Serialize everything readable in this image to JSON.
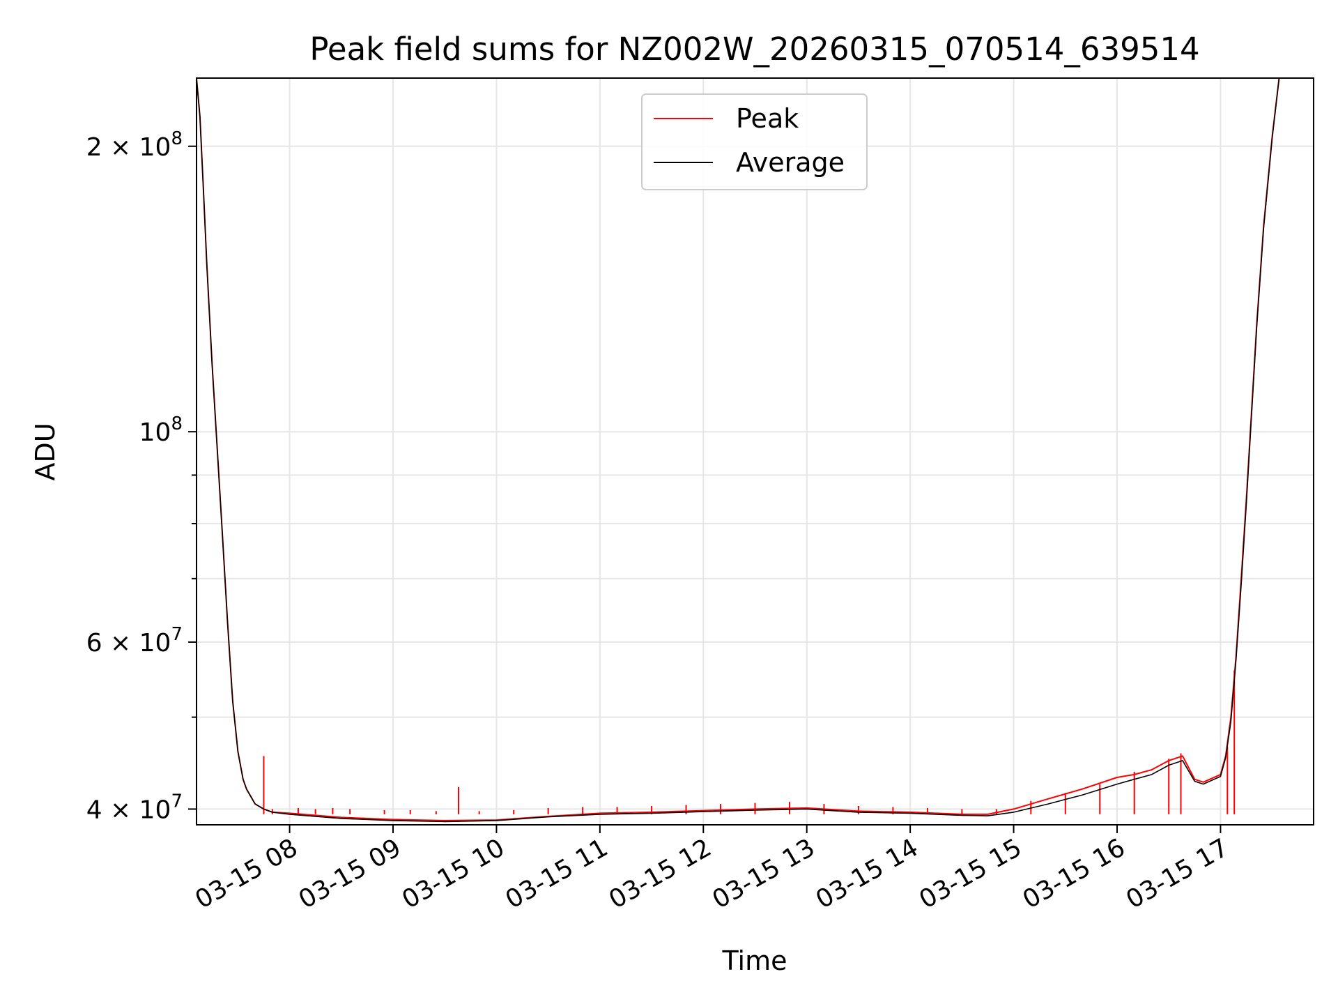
{
  "chart_data": {
    "type": "line",
    "title": "Peak field sums for NZ002W_20260315_070514_639514",
    "xlabel": "Time",
    "ylabel": "ADU",
    "x_scale": "time",
    "y_scale": "log",
    "xlim": [
      "2026-03-15 07:06",
      "2026-03-15 17:54"
    ],
    "ylim": [
      38500000,
      236000000
    ],
    "grid": true,
    "legend_position": "top-center",
    "x_ticks": [
      {
        "value": "2026-03-15 08:00",
        "label": "03-15 08"
      },
      {
        "value": "2026-03-15 09:00",
        "label": "03-15 09"
      },
      {
        "value": "2026-03-15 10:00",
        "label": "03-15 10"
      },
      {
        "value": "2026-03-15 11:00",
        "label": "03-15 11"
      },
      {
        "value": "2026-03-15 12:00",
        "label": "03-15 12"
      },
      {
        "value": "2026-03-15 13:00",
        "label": "03-15 13"
      },
      {
        "value": "2026-03-15 14:00",
        "label": "03-15 14"
      },
      {
        "value": "2026-03-15 15:00",
        "label": "03-15 15"
      },
      {
        "value": "2026-03-15 16:00",
        "label": "03-15 16"
      },
      {
        "value": "2026-03-15 17:00",
        "label": "03-15 17"
      }
    ],
    "y_ticks": [
      {
        "value": 40000000,
        "label_base": "4 × 10",
        "label_exp": "7"
      },
      {
        "value": 60000000,
        "label_base": "6 × 10",
        "label_exp": "7"
      },
      {
        "value": 100000000,
        "label_base": "10",
        "label_exp": "8"
      },
      {
        "value": 200000000,
        "label_base": "2 × 10",
        "label_exp": "8"
      }
    ],
    "y_minor_ticks": [
      50000000,
      70000000,
      80000000,
      90000000
    ],
    "series": [
      {
        "name": "Peak",
        "color": "#ff0000",
        "x": [
          "2026-03-15 07:06",
          "2026-03-15 07:08",
          "2026-03-15 07:10",
          "2026-03-15 07:12",
          "2026-03-15 07:15",
          "2026-03-15 07:18",
          "2026-03-15 07:21",
          "2026-03-15 07:24",
          "2026-03-15 07:27",
          "2026-03-15 07:30",
          "2026-03-15 07:33",
          "2026-03-15 07:35",
          "2026-03-15 07:40",
          "2026-03-15 07:45",
          "2026-03-15 07:50",
          "2026-03-15 08:00",
          "2026-03-15 08:30",
          "2026-03-15 09:00",
          "2026-03-15 09:30",
          "2026-03-15 10:00",
          "2026-03-15 10:30",
          "2026-03-15 11:00",
          "2026-03-15 11:30",
          "2026-03-15 12:00",
          "2026-03-15 12:30",
          "2026-03-15 13:00",
          "2026-03-15 13:30",
          "2026-03-15 14:00",
          "2026-03-15 14:30",
          "2026-03-15 14:45",
          "2026-03-15 15:00",
          "2026-03-15 15:20",
          "2026-03-15 15:40",
          "2026-03-15 16:00",
          "2026-03-15 16:10",
          "2026-03-15 16:20",
          "2026-03-15 16:30",
          "2026-03-15 16:38",
          "2026-03-15 16:45",
          "2026-03-15 16:50",
          "2026-03-15 17:00",
          "2026-03-15 17:03",
          "2026-03-15 17:06",
          "2026-03-15 17:09",
          "2026-03-15 17:12",
          "2026-03-15 17:15",
          "2026-03-15 17:18",
          "2026-03-15 17:21",
          "2026-03-15 17:25",
          "2026-03-15 17:30",
          "2026-03-15 17:34",
          "2026-03-15 17:38",
          "2026-03-15 17:42",
          "2026-03-15 17:46",
          "2026-03-15 17:50",
          "2026-03-15 17:54"
        ],
        "y": [
          236000000,
          215000000,
          180000000,
          150000000,
          118000000,
          96000000,
          78000000,
          63000000,
          52000000,
          46000000,
          43000000,
          42000000,
          40500000,
          40000000,
          39700000,
          39600000,
          39200000,
          39000000,
          38900000,
          38950000,
          39300000,
          39600000,
          39700000,
          39850000,
          40000000,
          40100000,
          39800000,
          39700000,
          39500000,
          39500000,
          40000000,
          41000000,
          42000000,
          43200000,
          43500000,
          44000000,
          45000000,
          45500000,
          43000000,
          42700000,
          43500000,
          45500000,
          50000000,
          58000000,
          70000000,
          85000000,
          105000000,
          130000000,
          165000000,
          205000000,
          236000000,
          236000000,
          236000000,
          236000000,
          236000000,
          236000000
        ],
        "spikes": [
          [
            "2026-03-15 07:45",
            45500000
          ],
          [
            "2026-03-15 07:50",
            40000000
          ],
          [
            "2026-03-15 08:05",
            40100000
          ],
          [
            "2026-03-15 08:15",
            40000000
          ],
          [
            "2026-03-15 08:25",
            40100000
          ],
          [
            "2026-03-15 08:35",
            40000000
          ],
          [
            "2026-03-15 08:55",
            39900000
          ],
          [
            "2026-03-15 09:10",
            39900000
          ],
          [
            "2026-03-15 09:25",
            39800000
          ],
          [
            "2026-03-15 09:38",
            42200000
          ],
          [
            "2026-03-15 09:50",
            39800000
          ],
          [
            "2026-03-15 10:10",
            39900000
          ],
          [
            "2026-03-15 10:30",
            40100000
          ],
          [
            "2026-03-15 10:50",
            40200000
          ],
          [
            "2026-03-15 11:10",
            40200000
          ],
          [
            "2026-03-15 11:30",
            40300000
          ],
          [
            "2026-03-15 11:50",
            40400000
          ],
          [
            "2026-03-15 12:10",
            40500000
          ],
          [
            "2026-03-15 12:30",
            40600000
          ],
          [
            "2026-03-15 12:50",
            40700000
          ],
          [
            "2026-03-15 13:10",
            40500000
          ],
          [
            "2026-03-15 13:30",
            40300000
          ],
          [
            "2026-03-15 13:50",
            40200000
          ],
          [
            "2026-03-15 14:10",
            40100000
          ],
          [
            "2026-03-15 14:30",
            40000000
          ],
          [
            "2026-03-15 14:50",
            40000000
          ],
          [
            "2026-03-15 15:10",
            40800000
          ],
          [
            "2026-03-15 15:30",
            41600000
          ],
          [
            "2026-03-15 15:50",
            42500000
          ],
          [
            "2026-03-15 16:10",
            43800000
          ],
          [
            "2026-03-15 16:30",
            45200000
          ],
          [
            "2026-03-15 16:37",
            45800000
          ],
          [
            "2026-03-15 17:04",
            46500000
          ],
          [
            "2026-03-15 17:08",
            56000000
          ]
        ]
      },
      {
        "name": "Average",
        "color": "#000000",
        "x": [
          "2026-03-15 07:06",
          "2026-03-15 07:08",
          "2026-03-15 07:10",
          "2026-03-15 07:12",
          "2026-03-15 07:15",
          "2026-03-15 07:18",
          "2026-03-15 07:21",
          "2026-03-15 07:24",
          "2026-03-15 07:27",
          "2026-03-15 07:30",
          "2026-03-15 07:33",
          "2026-03-15 07:35",
          "2026-03-15 07:40",
          "2026-03-15 07:45",
          "2026-03-15 07:50",
          "2026-03-15 08:00",
          "2026-03-15 08:30",
          "2026-03-15 09:00",
          "2026-03-15 09:30",
          "2026-03-15 10:00",
          "2026-03-15 10:30",
          "2026-03-15 11:00",
          "2026-03-15 11:30",
          "2026-03-15 12:00",
          "2026-03-15 12:30",
          "2026-03-15 13:00",
          "2026-03-15 13:30",
          "2026-03-15 14:00",
          "2026-03-15 14:30",
          "2026-03-15 14:45",
          "2026-03-15 15:00",
          "2026-03-15 15:20",
          "2026-03-15 15:40",
          "2026-03-15 16:00",
          "2026-03-15 16:10",
          "2026-03-15 16:20",
          "2026-03-15 16:30",
          "2026-03-15 16:38",
          "2026-03-15 16:45",
          "2026-03-15 16:50",
          "2026-03-15 17:00",
          "2026-03-15 17:03",
          "2026-03-15 17:06",
          "2026-03-15 17:09",
          "2026-03-15 17:12",
          "2026-03-15 17:15",
          "2026-03-15 17:18",
          "2026-03-15 17:21",
          "2026-03-15 17:25",
          "2026-03-15 17:30",
          "2026-03-15 17:34",
          "2026-03-15 17:38",
          "2026-03-15 17:42",
          "2026-03-15 17:46",
          "2026-03-15 17:50",
          "2026-03-15 17:54"
        ],
        "y": [
          236000000,
          215000000,
          180000000,
          150000000,
          118000000,
          96000000,
          78000000,
          63000000,
          52000000,
          46000000,
          43000000,
          42000000,
          40500000,
          40000000,
          39700000,
          39500000,
          39100000,
          38900000,
          38800000,
          38900000,
          39250000,
          39500000,
          39600000,
          39750000,
          39900000,
          40000000,
          39700000,
          39600000,
          39400000,
          39350000,
          39700000,
          40500000,
          41400000,
          42500000,
          43000000,
          43500000,
          44500000,
          45000000,
          42800000,
          42500000,
          43300000,
          45300000,
          49500000,
          57500000,
          69000000,
          84000000,
          104000000,
          129000000,
          164000000,
          204000000,
          236000000,
          236000000,
          236000000,
          236000000,
          236000000,
          236000000
        ]
      }
    ]
  }
}
